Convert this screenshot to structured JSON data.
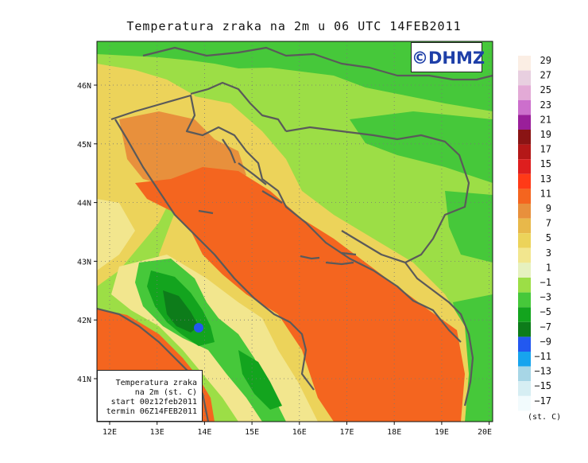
{
  "title": "Temperatura zraka na 2m u 06 UTC 14FEB2011",
  "credit": "©DHMZ",
  "info_box": {
    "line1": "Temperatura zraka",
    "line2": "na 2m (st. C)",
    "line3": "start 00z12feb2011",
    "line4": "termin 06Z14FEB2011"
  },
  "axes": {
    "lon_ticks": [
      "12E",
      "13E",
      "14E",
      "15E",
      "16E",
      "17E",
      "18E",
      "19E",
      "20E"
    ],
    "lat_ticks": [
      "46N",
      "45N",
      "44N",
      "43N",
      "42N",
      "41N"
    ]
  },
  "legend": {
    "unit": "(st. C)",
    "levels": [
      {
        "label": "29",
        "color": "#fbeee4"
      },
      {
        "label": "27",
        "color": "#e8cfe0"
      },
      {
        "label": "25",
        "color": "#e3aad6"
      },
      {
        "label": "23",
        "color": "#cc6fcc"
      },
      {
        "label": "21",
        "color": "#9a1f9a"
      },
      {
        "label": "19",
        "color": "#8a1414"
      },
      {
        "label": "17",
        "color": "#b41818"
      },
      {
        "label": "15",
        "color": "#de1e1e"
      },
      {
        "label": "13",
        "color": "#ff3a17"
      },
      {
        "label": "11",
        "color": "#f4651f"
      },
      {
        "label": "9",
        "color": "#e8903c"
      },
      {
        "label": "7",
        "color": "#e8b84a"
      },
      {
        "label": "5",
        "color": "#ecd35a"
      },
      {
        "label": "3",
        "color": "#f2e68e"
      },
      {
        "label": "1",
        "color": "#e6f1bf"
      },
      {
        "label": "−1",
        "color": "#9cde46"
      },
      {
        "label": "−3",
        "color": "#46c83a"
      },
      {
        "label": "−5",
        "color": "#13a41e"
      },
      {
        "label": "−7",
        "color": "#0d7c1a"
      },
      {
        "label": "−9",
        "color": "#2258f0"
      },
      {
        "label": "−11",
        "color": "#17a4ee"
      },
      {
        "label": "−13",
        "color": "#a7d6e6"
      },
      {
        "label": "−15",
        "color": "#d6eef3"
      },
      {
        "label": "−17",
        "color": "#f2fbfd"
      }
    ]
  }
}
